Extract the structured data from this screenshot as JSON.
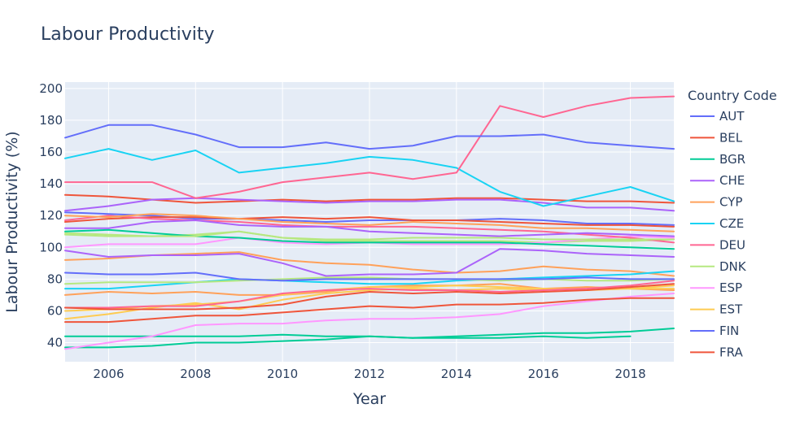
{
  "chart_data": {
    "type": "line",
    "title": "Labour Productivity",
    "xlabel": "Year",
    "ylabel": "Labour Productivity (%)",
    "legend_title": "Country Code",
    "legend_position": "right",
    "grid": true,
    "xlim": [
      2005,
      2019
    ],
    "ylim": [
      28,
      204
    ],
    "x_ticks": [
      2006,
      2008,
      2010,
      2012,
      2014,
      2016,
      2018
    ],
    "y_ticks": [
      40,
      60,
      80,
      100,
      120,
      140,
      160,
      180,
      200
    ],
    "x": [
      2005,
      2006,
      2007,
      2008,
      2009,
      2010,
      2011,
      2012,
      2013,
      2014,
      2015,
      2016,
      2017,
      2018,
      2019
    ],
    "series": [
      {
        "name": "AUT",
        "color": "#636efa",
        "values": [
          122,
          121,
          120,
          118,
          118,
          117,
          116,
          117,
          117,
          117,
          118,
          117,
          115,
          115,
          114
        ]
      },
      {
        "name": "BEL",
        "color": "#EF553B",
        "values": [
          133,
          132,
          130,
          128,
          129,
          130,
          129,
          130,
          130,
          131,
          131,
          130,
          129,
          129,
          128
        ]
      },
      {
        "name": "BGR",
        "color": "#00cc96",
        "values": [
          37,
          37,
          38,
          40,
          40,
          41,
          42,
          44,
          43,
          44,
          45,
          46,
          46,
          47,
          49
        ]
      },
      {
        "name": "CHE",
        "color": "#ab63fa",
        "values": [
          123,
          126,
          130,
          131,
          130,
          129,
          128,
          129,
          129,
          130,
          130,
          128,
          125,
          125,
          123
        ]
      },
      {
        "name": "CYP",
        "color": "#FFA15A",
        "values": [
          92,
          93,
          95,
          96,
          97,
          92,
          90,
          89,
          86,
          84,
          85,
          88,
          86,
          85,
          82
        ]
      },
      {
        "name": "CZE",
        "color": "#19d3f3",
        "values": [
          156,
          162,
          155,
          161,
          147,
          150,
          153,
          157,
          155,
          150,
          135,
          126,
          132,
          138,
          129
        ]
      },
      {
        "name": "DEU",
        "color": "#FF6692",
        "values": [
          141,
          141,
          141,
          131,
          135,
          141,
          144,
          147,
          143,
          147,
          189,
          182,
          189,
          194,
          195
        ]
      },
      {
        "name": "DNK",
        "color": "#B6E880",
        "values": [
          109,
          108,
          107,
          108,
          110,
          106,
          104,
          104,
          104,
          104,
          104,
          103,
          104,
          104,
          105
        ]
      },
      {
        "name": "ESP",
        "color": "#FF97FF",
        "values": [
          100,
          102,
          102,
          102,
          106,
          103,
          102,
          103,
          102,
          102,
          102,
          103,
          105,
          107,
          106
        ]
      },
      {
        "name": "EST",
        "color": "#FECB52",
        "values": [
          55,
          58,
          62,
          65,
          61,
          67,
          71,
          73,
          74,
          73,
          74,
          73,
          75,
          74,
          76
        ]
      },
      {
        "name": "FIN",
        "color": "#636efa",
        "values": [
          169,
          177,
          177,
          171,
          163,
          163,
          166,
          162,
          164,
          170,
          170,
          171,
          166,
          164,
          162
        ]
      },
      {
        "name": "FRA",
        "color": "#EF553B",
        "values": [
          116,
          118,
          119,
          119,
          118,
          119,
          118,
          119,
          117,
          117,
          116,
          115,
          114,
          114,
          113
        ]
      },
      {
        "name": "",
        "color": "#00cc96",
        "values": [
          44,
          44,
          44,
          44,
          44,
          45,
          44,
          44,
          43,
          43,
          43,
          44,
          43,
          44,
          null
        ]
      },
      {
        "name": "",
        "color": "#ab63fa",
        "values": [
          98,
          94,
          95,
          95,
          96,
          90,
          82,
          83,
          83,
          84,
          99,
          98,
          96,
          95,
          94
        ]
      },
      {
        "name": "",
        "color": "#FFA15A",
        "values": [
          70,
          72,
          71,
          72,
          70,
          70,
          72,
          75,
          76,
          76,
          77,
          74,
          75,
          74,
          73
        ]
      },
      {
        "name": "",
        "color": "#19d3f3",
        "values": [
          74,
          74,
          76,
          78,
          80,
          79,
          78,
          77,
          77,
          79,
          80,
          81,
          82,
          83,
          85
        ]
      },
      {
        "name": "",
        "color": "#FF6692",
        "values": [
          117,
          120,
          118,
          117,
          116,
          114,
          113,
          113,
          113,
          112,
          111,
          110,
          108,
          106,
          103
        ]
      },
      {
        "name": "",
        "color": "#B6E880",
        "values": [
          77,
          78,
          78,
          78,
          79,
          80,
          81,
          81,
          80,
          80,
          79,
          80,
          79,
          79,
          80
        ]
      },
      {
        "name": "",
        "color": "#FF97FF",
        "values": [
          36,
          40,
          44,
          51,
          52,
          52,
          54,
          55,
          55,
          56,
          58,
          63,
          66,
          69,
          71
        ]
      },
      {
        "name": "",
        "color": "#FECB52",
        "values": [
          60,
          61,
          63,
          64,
          66,
          70,
          73,
          75,
          75,
          76,
          75,
          74,
          73,
          74,
          74
        ]
      },
      {
        "name": "",
        "color": "#636efa",
        "values": [
          84,
          83,
          83,
          84,
          80,
          79,
          80,
          80,
          80,
          80,
          80,
          80,
          81,
          80,
          80
        ]
      },
      {
        "name": "",
        "color": "#EF553B",
        "values": [
          53,
          53,
          55,
          57,
          57,
          59,
          61,
          63,
          62,
          64,
          64,
          65,
          67,
          68,
          68
        ]
      },
      {
        "name": "",
        "color": "#00cc96",
        "values": [
          110,
          111,
          109,
          107,
          106,
          104,
          103,
          103,
          103,
          103,
          103,
          102,
          101,
          100,
          99
        ]
      },
      {
        "name": "",
        "color": "#ab63fa",
        "values": [
          112,
          112,
          116,
          117,
          114,
          113,
          113,
          110,
          109,
          108,
          107,
          108,
          109,
          108,
          107
        ]
      },
      {
        "name": "",
        "color": "#FFA15A",
        "values": [
          120,
          119,
          121,
          120,
          118,
          116,
          115,
          114,
          116,
          115,
          114,
          112,
          112,
          111,
          110
        ]
      },
      {
        "name": "",
        "color": "#FF6692",
        "values": [
          62,
          62,
          63,
          63,
          66,
          71,
          73,
          74,
          73,
          73,
          72,
          73,
          74,
          76,
          79
        ]
      },
      {
        "name": "",
        "color": "#B6E880",
        "values": [
          108,
          107,
          107,
          107,
          110,
          106,
          105,
          105,
          106,
          106,
          106,
          105,
          105,
          105,
          105
        ]
      },
      {
        "name": "",
        "color": "#EF553B",
        "values": [
          62,
          61,
          61,
          61,
          62,
          64,
          69,
          72,
          71,
          72,
          71,
          72,
          73,
          75,
          77
        ]
      }
    ]
  }
}
